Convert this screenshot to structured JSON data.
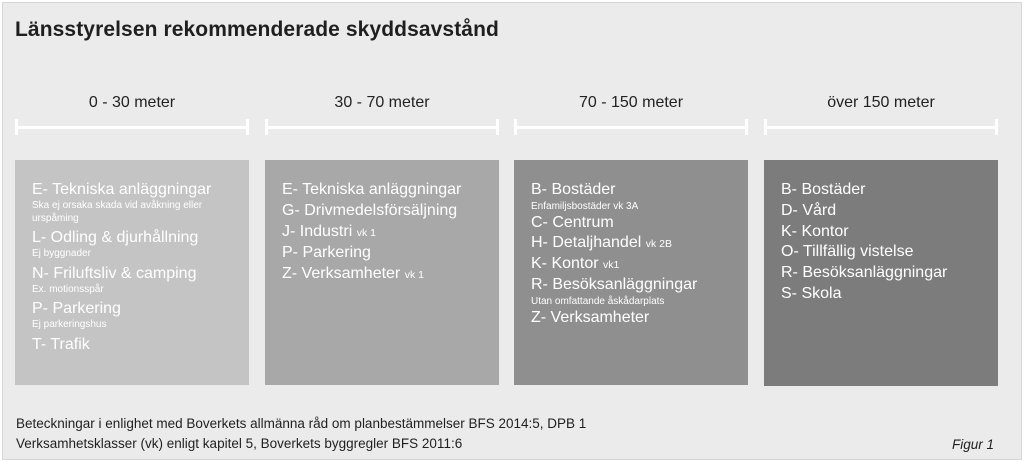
{
  "title": "Länsstyrelsen rekommenderade skyddsavstånd",
  "ranges": [
    "0 - 30 meter",
    "30 - 70 meter",
    "70 - 150 meter",
    "över 150 meter"
  ],
  "columns": [
    {
      "color": "#c4c4c4",
      "entries": [
        {
          "label": "E- Tekniska anläggningar",
          "note": "Ska ej orsaka skada vid avåkning eller urspåming"
        },
        {
          "label": "L- Odling & djurhållning",
          "note": "Ej byggnader"
        },
        {
          "label": "N- Friluftsliv & camping",
          "note": "Ex. motionsspår"
        },
        {
          "label": "P- Parkering",
          "note": "Ej parkeringshus"
        },
        {
          "label": "T- Trafik"
        }
      ]
    },
    {
      "color": "#a8a8a8",
      "entries": [
        {
          "label": "E- Tekniska anläggningar"
        },
        {
          "label": "G- Drivmedelsförsäljning"
        },
        {
          "label": "J- Industri",
          "vk": "vk 1"
        },
        {
          "label": "P- Parkering"
        },
        {
          "label": "Z- Verksamheter",
          "vk": "vk 1"
        }
      ]
    },
    {
      "color": "#8f8f8f",
      "entries": [
        {
          "label": "B- Bostäder",
          "note": "Enfamiljsbostäder vk 3A"
        },
        {
          "label": "C- Centrum"
        },
        {
          "label": "H- Detaljhandel",
          "vk": "vk 2B"
        },
        {
          "label": "K- Kontor",
          "vk": "vk1"
        },
        {
          "label": "R- Besöksanläggningar",
          "note": "Utan omfattande åskådarplats"
        },
        {
          "label": "Z- Verksamheter"
        }
      ]
    },
    {
      "color": "#7d7c7c",
      "entries": [
        {
          "label": "B- Bostäder"
        },
        {
          "label": "D- Vård"
        },
        {
          "label": "K- Kontor"
        },
        {
          "label": "O- Tillfällig vistelse"
        },
        {
          "label": "R- Besöksanläggningar"
        },
        {
          "label": "S- Skola"
        }
      ]
    }
  ],
  "footer": {
    "line1": "Beteckningar i enlighet med Boverkets allmänna råd om planbestämmelser BFS 2014:5, DPB 1",
    "line2": "Verksamhetsklasser (vk) enligt  kapitel 5, Boverkets byggregler BFS 2011:6",
    "figure": "Figur 1"
  }
}
